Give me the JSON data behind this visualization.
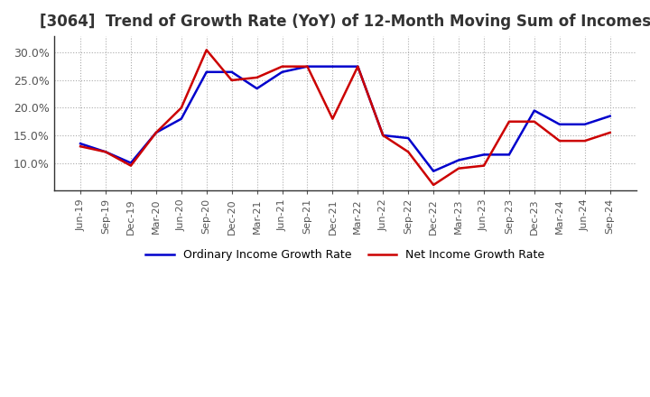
{
  "title": "[3064]  Trend of Growth Rate (YoY) of 12-Month Moving Sum of Incomes",
  "title_fontsize": 12,
  "background_color": "#ffffff",
  "grid_color": "#aaaaaa",
  "xlabels": [
    "Jun-19",
    "Sep-19",
    "Dec-19",
    "Mar-20",
    "Jun-20",
    "Sep-20",
    "Dec-20",
    "Mar-21",
    "Jun-21",
    "Sep-21",
    "Dec-21",
    "Mar-22",
    "Jun-22",
    "Sep-22",
    "Dec-22",
    "Mar-23",
    "Jun-23",
    "Sep-23",
    "Dec-23",
    "Mar-24",
    "Jun-24",
    "Sep-24"
  ],
  "ordinary_income": [
    13.5,
    12.0,
    10.0,
    15.5,
    18.0,
    26.5,
    26.5,
    23.5,
    26.5,
    27.5,
    27.5,
    27.5,
    15.0,
    14.5,
    8.5,
    10.5,
    11.5,
    11.5,
    19.5,
    17.0,
    17.0,
    18.5
  ],
  "net_income": [
    13.0,
    12.0,
    9.5,
    15.5,
    20.0,
    30.5,
    25.0,
    25.5,
    27.5,
    27.5,
    18.0,
    27.5,
    15.0,
    12.0,
    6.0,
    9.0,
    9.5,
    17.5,
    17.5,
    14.0,
    14.0,
    15.5
  ],
  "ordinary_color": "#0000cc",
  "net_color": "#cc0000",
  "ylim": [
    5.0,
    33.0
  ],
  "yticks": [
    10.0,
    15.0,
    20.0,
    25.0,
    30.0
  ],
  "legend_labels": [
    "Ordinary Income Growth Rate",
    "Net Income Growth Rate"
  ]
}
